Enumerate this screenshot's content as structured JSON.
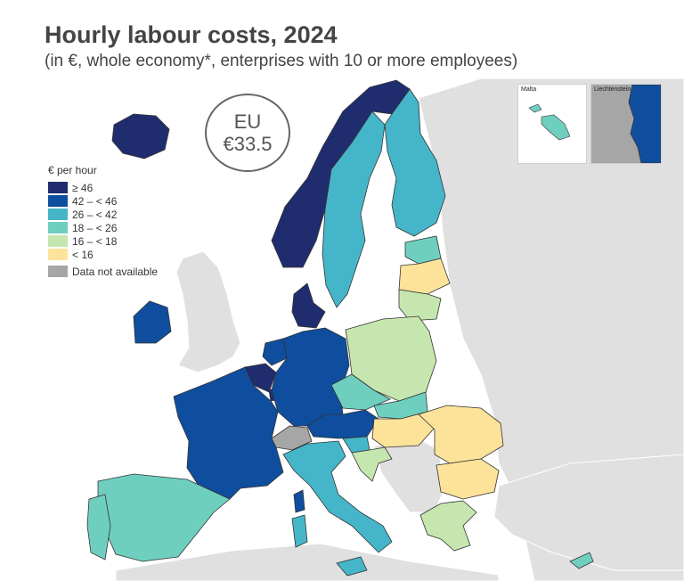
{
  "title": "Hourly labour costs, 2024",
  "subtitle": "(in €, whole economy*, enterprises with 10 or more employees)",
  "eu_badge": {
    "line1": "EU",
    "line2": "€33.5"
  },
  "legend": {
    "title": "€ per hour",
    "items": [
      {
        "label": "≥ 46",
        "color": "#1f2d6e"
      },
      {
        "label": "42 – < 46",
        "color": "#0f4e9e"
      },
      {
        "label": "26 – < 42",
        "color": "#45b6c9"
      },
      {
        "label": "18 – < 26",
        "color": "#6fcfbf"
      },
      {
        "label": "16 – < 18",
        "color": "#c6e6b0"
      },
      {
        "label": "< 16",
        "color": "#fde39a"
      }
    ],
    "na_label": "Data not available",
    "na_color": "#a6a6a6"
  },
  "insets": [
    {
      "label": "Malta",
      "class": "18 – < 26"
    },
    {
      "label": "Liechtenstein",
      "class": "42 – < 46"
    }
  ],
  "colors": {
    "background_land": "#e0e0e0",
    "sea": "#ffffff",
    "border": "#333333"
  }
}
